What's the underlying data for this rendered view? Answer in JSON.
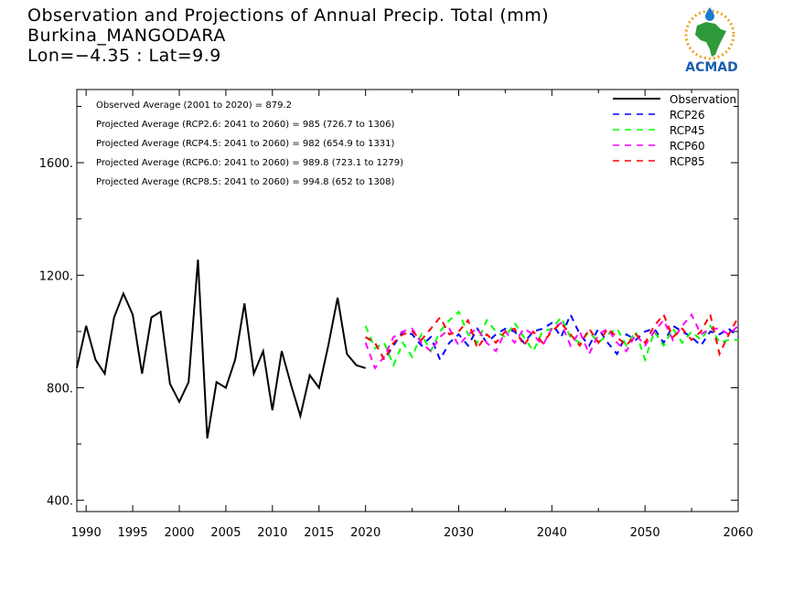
{
  "header": {
    "title": "Observation and Projections of Annual Precip. Total (mm)",
    "location": "Burkina_MANGODARA",
    "coords": "Lon=−4.35 : Lat=9.9"
  },
  "logo": {
    "text": "ACMAD"
  },
  "annotations": [
    "Observed Average (2001 to 2020) = 879.2",
    "Projected Average (RCP2.6: 2041 to 2060) = 985 (726.7 to 1306)",
    "Projected Average (RCP4.5: 2041 to 2060) = 982 (654.9 to 1331)",
    "Projected Average (RCP6.0: 2041 to 2060) = 989.8 (723.1 to 1279)",
    "Projected Average (RCP8.5: 2041 to 2060) = 994.8 (652 to 1308)"
  ],
  "colors": {
    "Observation": "#000000",
    "RCP26": "#0000ff",
    "RCP45": "#00ff00",
    "RCP60": "#ff00ff",
    "RCP85": "#ff0000"
  },
  "chart_data": {
    "type": "line",
    "xlim": [
      1989,
      2060
    ],
    "ylim": [
      360,
      1860
    ],
    "x_ticks": [
      1990,
      1995,
      2000,
      2005,
      2010,
      2015,
      2020,
      2030,
      2040,
      2050,
      2060
    ],
    "y_ticks": [
      400,
      800,
      1200,
      1600
    ],
    "y_tick_labels": [
      "400.",
      "800.",
      "1200.",
      "1600."
    ],
    "legend_position": "top-right",
    "series": [
      {
        "name": "Observation",
        "x": [
          1989,
          1990,
          1991,
          1992,
          1993,
          1994,
          1995,
          1996,
          1997,
          1998,
          1999,
          2000,
          2001,
          2002,
          2003,
          2004,
          2005,
          2006,
          2007,
          2008,
          2009,
          2010,
          2011,
          2012,
          2013,
          2014,
          2015,
          2016,
          2017,
          2018,
          2019,
          2020
        ],
        "y": [
          870,
          1020,
          900,
          850,
          1050,
          1135,
          1060,
          850,
          1050,
          1070,
          815,
          750,
          820,
          1255,
          620,
          820,
          800,
          900,
          1100,
          850,
          930,
          720,
          930,
          810,
          700,
          845,
          800,
          950,
          1120,
          920,
          880,
          870
        ]
      },
      {
        "name": "RCP26",
        "x": [
          2020,
          2021,
          2022,
          2023,
          2024,
          2025,
          2026,
          2027,
          2028,
          2029,
          2030,
          2031,
          2032,
          2033,
          2034,
          2035,
          2036,
          2037,
          2038,
          2039,
          2040,
          2041,
          2042,
          2043,
          2044,
          2045,
          2046,
          2047,
          2048,
          2049,
          2050,
          2051,
          2052,
          2053,
          2054,
          2055,
          2056,
          2057,
          2058,
          2059,
          2060
        ],
        "y": [
          980,
          960,
          900,
          950,
          1000,
          990,
          950,
          980,
          900,
          960,
          990,
          950,
          1010,
          960,
          990,
          1010,
          1000,
          960,
          1000,
          1010,
          1030,
          980,
          1060,
          990,
          950,
          1010,
          960,
          920,
          990,
          970,
          1000,
          1010,
          960,
          1020,
          1000,
          980,
          950,
          1000,
          990,
          1010,
          980
        ]
      },
      {
        "name": "RCP45",
        "x": [
          2020,
          2021,
          2022,
          2023,
          2024,
          2025,
          2026,
          2027,
          2028,
          2029,
          2030,
          2031,
          2032,
          2033,
          2034,
          2035,
          2036,
          2037,
          2038,
          2039,
          2040,
          2041,
          2042,
          2043,
          2044,
          2045,
          2046,
          2047,
          2048,
          2049,
          2050,
          2051,
          2052,
          2053,
          2054,
          2055,
          2056,
          2057,
          2058,
          2059,
          2060
        ],
        "y": [
          1020,
          940,
          960,
          880,
          960,
          910,
          990,
          930,
          1000,
          1040,
          1070,
          990,
          960,
          1040,
          1000,
          980,
          1030,
          980,
          930,
          1000,
          1010,
          1050,
          980,
          960,
          1000,
          960,
          990,
          1010,
          950,
          1000,
          900,
          1000,
          950,
          1010,
          960,
          1000,
          970,
          1020,
          960,
          970,
          970
        ]
      },
      {
        "name": "RCP60",
        "x": [
          2020,
          2021,
          2022,
          2023,
          2024,
          2025,
          2026,
          2027,
          2028,
          2029,
          2030,
          2031,
          2032,
          2033,
          2034,
          2035,
          2036,
          2037,
          2038,
          2039,
          2040,
          2041,
          2042,
          2043,
          2044,
          2045,
          2046,
          2047,
          2048,
          2049,
          2050,
          2051,
          2052,
          2053,
          2054,
          2055,
          2056,
          2057,
          2058,
          2059,
          2060
        ],
        "y": [
          960,
          870,
          910,
          980,
          1000,
          1010,
          960,
          930,
          980,
          1010,
          950,
          990,
          1010,
          960,
          930,
          1000,
          960,
          1010,
          990,
          950,
          1010,
          1030,
          950,
          1000,
          920,
          990,
          1010,
          960,
          930,
          990,
          950,
          1000,
          1040,
          970,
          1020,
          1060,
          990,
          1010,
          1010,
          990,
          1020
        ]
      },
      {
        "name": "RCP85",
        "x": [
          2020,
          2021,
          2022,
          2023,
          2024,
          2025,
          2026,
          2027,
          2028,
          2029,
          2030,
          2031,
          2032,
          2033,
          2034,
          2035,
          2036,
          2037,
          2038,
          2039,
          2040,
          2041,
          2042,
          2043,
          2044,
          2045,
          2046,
          2047,
          2048,
          2049,
          2050,
          2051,
          2052,
          2053,
          2054,
          2055,
          2056,
          2057,
          2058,
          2059,
          2060
        ],
        "y": [
          980,
          960,
          900,
          960,
          990,
          1000,
          970,
          1010,
          1050,
          990,
          1000,
          1040,
          940,
          990,
          960,
          1000,
          1010,
          950,
          1000,
          960,
          1000,
          1030,
          990,
          950,
          1010,
          960,
          1010,
          980,
          950,
          990,
          960,
          1020,
          1060,
          980,
          1010,
          970,
          1000,
          1060,
          920,
          990,
          1050
        ]
      }
    ]
  }
}
